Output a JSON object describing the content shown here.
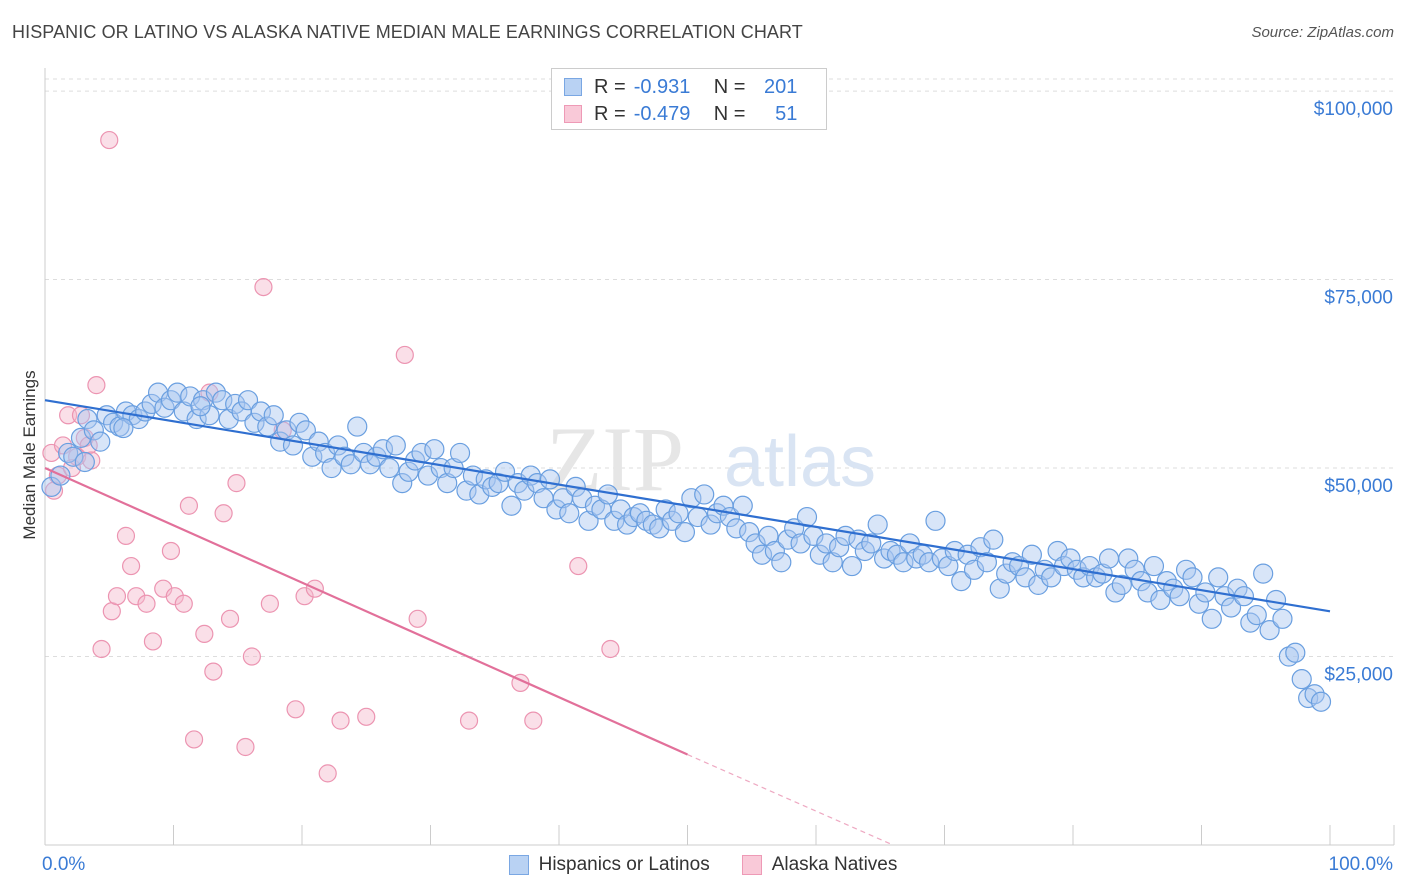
{
  "chart_data": {
    "type": "scatter",
    "title": "HISPANIC OR LATINO VS ALASKA NATIVE MEDIAN MALE EARNINGS CORRELATION CHART",
    "source": "Source: ZipAtlas.com",
    "watermark": "ZIPatlas",
    "xlabel": "",
    "ylabel": "Median Male Earnings",
    "xlim": [
      0,
      100
    ],
    "ylim": [
      0,
      102000
    ],
    "x_tick_labels": [
      "0.0%",
      "100.0%"
    ],
    "y_ticks": [
      25000,
      50000,
      75000,
      100000
    ],
    "y_tick_labels": [
      "$25,000",
      "$50,000",
      "$75,000",
      "$100,000"
    ],
    "grid": true,
    "colors": {
      "blue_fill": "#a9c6ef",
      "blue_stroke": "#6a9fe0",
      "blue_line": "#2f6fd0",
      "pink_fill": "#f5b8cb",
      "pink_stroke": "#ec94b1",
      "pink_line": "#e2709a",
      "axis_label": "#3a7bd5"
    },
    "legend_stats": [
      {
        "r_label": "R =",
        "r": "-0.931",
        "n_label": "N =",
        "n": "201"
      },
      {
        "r_label": "R =",
        "r": "-0.479",
        "n_label": "N =",
        "n": "51"
      }
    ],
    "series": [
      {
        "name": "Hispanics or Latinos",
        "trend": {
          "x": [
            0,
            100
          ],
          "y": [
            59000,
            31000
          ]
        },
        "points": [
          [
            0.5,
            47500
          ],
          [
            1.2,
            49000
          ],
          [
            1.8,
            52000
          ],
          [
            2.2,
            51500
          ],
          [
            2.8,
            54000
          ],
          [
            3.3,
            56500
          ],
          [
            3.8,
            55000
          ],
          [
            4.3,
            53500
          ],
          [
            4.8,
            57000
          ],
          [
            5.3,
            56000
          ],
          [
            5.8,
            55500
          ],
          [
            6.3,
            57500
          ],
          [
            6.8,
            57000
          ],
          [
            7.3,
            56500
          ],
          [
            7.8,
            57500
          ],
          [
            8.3,
            58500
          ],
          [
            8.8,
            60000
          ],
          [
            9.3,
            58000
          ],
          [
            9.8,
            59000
          ],
          [
            10.3,
            60000
          ],
          [
            10.8,
            57500
          ],
          [
            11.3,
            59500
          ],
          [
            11.8,
            56500
          ],
          [
            12.3,
            59000
          ],
          [
            12.8,
            57000
          ],
          [
            13.3,
            60000
          ],
          [
            13.8,
            59000
          ],
          [
            14.3,
            56500
          ],
          [
            14.8,
            58500
          ],
          [
            15.3,
            57500
          ],
          [
            15.8,
            59000
          ],
          [
            16.3,
            56000
          ],
          [
            16.8,
            57500
          ],
          [
            17.3,
            55500
          ],
          [
            17.8,
            57000
          ],
          [
            18.3,
            53500
          ],
          [
            18.8,
            55000
          ],
          [
            19.3,
            53000
          ],
          [
            19.8,
            56000
          ],
          [
            20.3,
            55000
          ],
          [
            20.8,
            51500
          ],
          [
            21.3,
            53500
          ],
          [
            21.8,
            52000
          ],
          [
            22.3,
            50000
          ],
          [
            22.8,
            53000
          ],
          [
            23.3,
            51500
          ],
          [
            23.8,
            50500
          ],
          [
            24.3,
            55500
          ],
          [
            24.8,
            52000
          ],
          [
            25.3,
            50500
          ],
          [
            25.8,
            51500
          ],
          [
            26.3,
            52500
          ],
          [
            26.8,
            50000
          ],
          [
            27.3,
            53000
          ],
          [
            27.8,
            48000
          ],
          [
            28.3,
            49500
          ],
          [
            28.8,
            51000
          ],
          [
            29.3,
            52000
          ],
          [
            29.8,
            49000
          ],
          [
            30.3,
            52500
          ],
          [
            30.8,
            50000
          ],
          [
            31.3,
            48000
          ],
          [
            31.8,
            50000
          ],
          [
            32.3,
            52000
          ],
          [
            32.8,
            47000
          ],
          [
            33.3,
            49000
          ],
          [
            33.8,
            46500
          ],
          [
            34.3,
            48500
          ],
          [
            34.8,
            47500
          ],
          [
            35.3,
            48000
          ],
          [
            35.8,
            49500
          ],
          [
            36.3,
            45000
          ],
          [
            36.8,
            48000
          ],
          [
            37.3,
            47000
          ],
          [
            37.8,
            49000
          ],
          [
            38.3,
            48000
          ],
          [
            38.8,
            46000
          ],
          [
            39.3,
            48500
          ],
          [
            39.8,
            44500
          ],
          [
            40.3,
            46000
          ],
          [
            40.8,
            44000
          ],
          [
            41.3,
            47500
          ],
          [
            41.8,
            46000
          ],
          [
            42.3,
            43000
          ],
          [
            42.8,
            45000
          ],
          [
            43.3,
            44500
          ],
          [
            43.8,
            46500
          ],
          [
            44.3,
            43000
          ],
          [
            44.8,
            44500
          ],
          [
            45.3,
            42500
          ],
          [
            45.8,
            43500
          ],
          [
            46.3,
            44000
          ],
          [
            46.8,
            43000
          ],
          [
            47.3,
            42500
          ],
          [
            47.8,
            42000
          ],
          [
            48.3,
            44500
          ],
          [
            48.8,
            43000
          ],
          [
            49.3,
            44000
          ],
          [
            49.8,
            41500
          ],
          [
            50.3,
            46000
          ],
          [
            50.8,
            43500
          ],
          [
            51.3,
            46500
          ],
          [
            51.8,
            42500
          ],
          [
            52.3,
            44000
          ],
          [
            52.8,
            45000
          ],
          [
            53.3,
            43500
          ],
          [
            53.8,
            42000
          ],
          [
            54.3,
            45000
          ],
          [
            54.8,
            41500
          ],
          [
            55.3,
            40000
          ],
          [
            55.8,
            38500
          ],
          [
            56.3,
            41000
          ],
          [
            56.8,
            39000
          ],
          [
            57.3,
            37500
          ],
          [
            57.8,
            40500
          ],
          [
            58.3,
            42000
          ],
          [
            58.8,
            40000
          ],
          [
            59.3,
            43500
          ],
          [
            59.8,
            41000
          ],
          [
            60.3,
            38500
          ],
          [
            60.8,
            40000
          ],
          [
            61.3,
            37500
          ],
          [
            61.8,
            39500
          ],
          [
            62.3,
            41000
          ],
          [
            62.8,
            37000
          ],
          [
            63.3,
            40500
          ],
          [
            63.8,
            39000
          ],
          [
            64.3,
            40000
          ],
          [
            64.8,
            42500
          ],
          [
            65.3,
            38000
          ],
          [
            65.8,
            39000
          ],
          [
            66.3,
            38500
          ],
          [
            66.8,
            37500
          ],
          [
            67.3,
            40000
          ],
          [
            67.8,
            38000
          ],
          [
            68.3,
            38500
          ],
          [
            68.8,
            37500
          ],
          [
            69.3,
            43000
          ],
          [
            69.8,
            38000
          ],
          [
            70.3,
            37000
          ],
          [
            70.8,
            39000
          ],
          [
            71.3,
            35000
          ],
          [
            71.8,
            38500
          ],
          [
            72.3,
            36500
          ],
          [
            72.8,
            39500
          ],
          [
            73.3,
            37500
          ],
          [
            73.8,
            40500
          ],
          [
            74.3,
            34000
          ],
          [
            74.8,
            36000
          ],
          [
            75.3,
            37500
          ],
          [
            75.8,
            37000
          ],
          [
            76.3,
            35500
          ],
          [
            76.8,
            38500
          ],
          [
            77.3,
            34500
          ],
          [
            77.8,
            36500
          ],
          [
            78.3,
            35500
          ],
          [
            78.8,
            39000
          ],
          [
            79.3,
            37000
          ],
          [
            79.8,
            38000
          ],
          [
            80.3,
            36500
          ],
          [
            80.8,
            35500
          ],
          [
            81.3,
            37000
          ],
          [
            81.8,
            35500
          ],
          [
            82.3,
            36000
          ],
          [
            82.8,
            38000
          ],
          [
            83.3,
            33500
          ],
          [
            83.8,
            34500
          ],
          [
            84.3,
            38000
          ],
          [
            84.8,
            36500
          ],
          [
            85.3,
            35000
          ],
          [
            85.8,
            33500
          ],
          [
            86.3,
            37000
          ],
          [
            86.8,
            32500
          ],
          [
            87.3,
            35000
          ],
          [
            87.8,
            34000
          ],
          [
            88.3,
            33000
          ],
          [
            88.8,
            36500
          ],
          [
            89.3,
            35500
          ],
          [
            89.8,
            32000
          ],
          [
            90.3,
            33500
          ],
          [
            90.8,
            30000
          ],
          [
            91.3,
            35500
          ],
          [
            91.8,
            33000
          ],
          [
            92.3,
            31500
          ],
          [
            92.8,
            34000
          ],
          [
            93.3,
            33000
          ],
          [
            93.8,
            29500
          ],
          [
            94.3,
            30500
          ],
          [
            94.8,
            36000
          ],
          [
            95.3,
            28500
          ],
          [
            95.8,
            32500
          ],
          [
            96.3,
            30000
          ],
          [
            96.8,
            25000
          ],
          [
            97.3,
            25500
          ],
          [
            97.8,
            22000
          ],
          [
            98.3,
            19500
          ],
          [
            98.8,
            20000
          ],
          [
            99.3,
            19000
          ],
          [
            3.1,
            50800
          ],
          [
            6.1,
            55300
          ],
          [
            12.1,
            58200
          ]
        ]
      },
      {
        "name": "Alaska Natives",
        "trend": {
          "x": [
            0,
            50
          ],
          "y": [
            50000,
            12000
          ]
        },
        "trend_dashed": {
          "x": [
            50,
            66
          ],
          "y": [
            12000,
            0
          ]
        },
        "points": [
          [
            0.5,
            52000
          ],
          [
            0.7,
            47000
          ],
          [
            1.0,
            49000
          ],
          [
            1.4,
            53000
          ],
          [
            1.8,
            57000
          ],
          [
            2.1,
            50000
          ],
          [
            2.5,
            51500
          ],
          [
            2.8,
            57000
          ],
          [
            3.1,
            54000
          ],
          [
            3.4,
            53000
          ],
          [
            3.6,
            51000
          ],
          [
            4.0,
            61000
          ],
          [
            4.4,
            26000
          ],
          [
            5.2,
            31000
          ],
          [
            5.6,
            33000
          ],
          [
            6.3,
            41000
          ],
          [
            6.7,
            37000
          ],
          [
            7.1,
            33000
          ],
          [
            7.9,
            32000
          ],
          [
            8.4,
            27000
          ],
          [
            9.2,
            34000
          ],
          [
            9.8,
            39000
          ],
          [
            10.1,
            33000
          ],
          [
            10.8,
            32000
          ],
          [
            11.2,
            45000
          ],
          [
            11.6,
            14000
          ],
          [
            12.4,
            28000
          ],
          [
            13.1,
            23000
          ],
          [
            13.9,
            44000
          ],
          [
            14.4,
            30000
          ],
          [
            14.9,
            48000
          ],
          [
            15.6,
            13000
          ],
          [
            16.1,
            25000
          ],
          [
            17.0,
            74000
          ],
          [
            17.5,
            32000
          ],
          [
            18.5,
            55000
          ],
          [
            19.5,
            18000
          ],
          [
            20.2,
            33000
          ],
          [
            21.0,
            34000
          ],
          [
            22.0,
            9500
          ],
          [
            23.0,
            16500
          ],
          [
            25.0,
            17000
          ],
          [
            28.0,
            65000
          ],
          [
            29.0,
            30000
          ],
          [
            33.0,
            16500
          ],
          [
            37.0,
            21500
          ],
          [
            38.0,
            16500
          ],
          [
            41.5,
            37000
          ],
          [
            44.0,
            26000
          ],
          [
            5.0,
            93500
          ],
          [
            12.8,
            60000
          ]
        ]
      }
    ]
  },
  "legend": {
    "items": [
      {
        "label": "Hispanics or Latinos"
      },
      {
        "label": "Alaska Natives"
      }
    ]
  }
}
